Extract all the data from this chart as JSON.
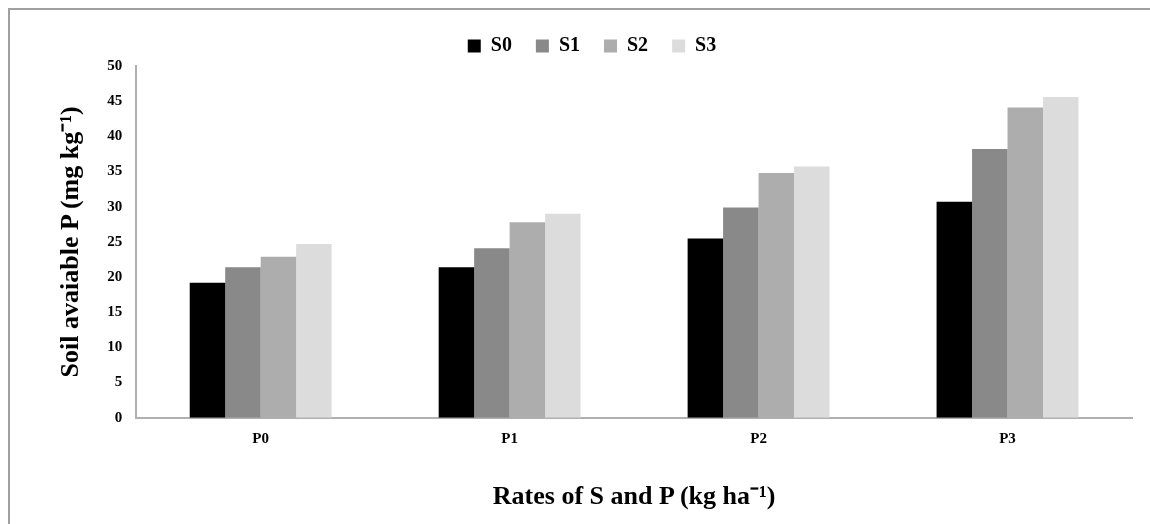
{
  "chart_data": {
    "type": "bar",
    "xlabel": "Rates of S and P (kg ha⁻¹)",
    "ylabel": "Soil avaiable P (mg kg⁻¹)",
    "categories": [
      "P0",
      "P1",
      "P2",
      "P3"
    ],
    "series": [
      {
        "name": "S0",
        "color": "#000000",
        "values": [
          19.2,
          21.4,
          25.5,
          30.7
        ]
      },
      {
        "name": "S1",
        "color": "#898989",
        "values": [
          21.4,
          24.1,
          29.9,
          38.2
        ]
      },
      {
        "name": "S2",
        "color": "#adadad",
        "values": [
          22.9,
          27.8,
          34.8,
          44.1
        ]
      },
      {
        "name": "S3",
        "color": "#dcdcdc",
        "values": [
          24.7,
          29.0,
          35.7,
          45.6
        ]
      }
    ],
    "ylim": [
      0,
      50
    ],
    "yticks": [
      0,
      5,
      10,
      15,
      20,
      25,
      30,
      35,
      40,
      45,
      50
    ],
    "grid": false,
    "legend": "top"
  }
}
